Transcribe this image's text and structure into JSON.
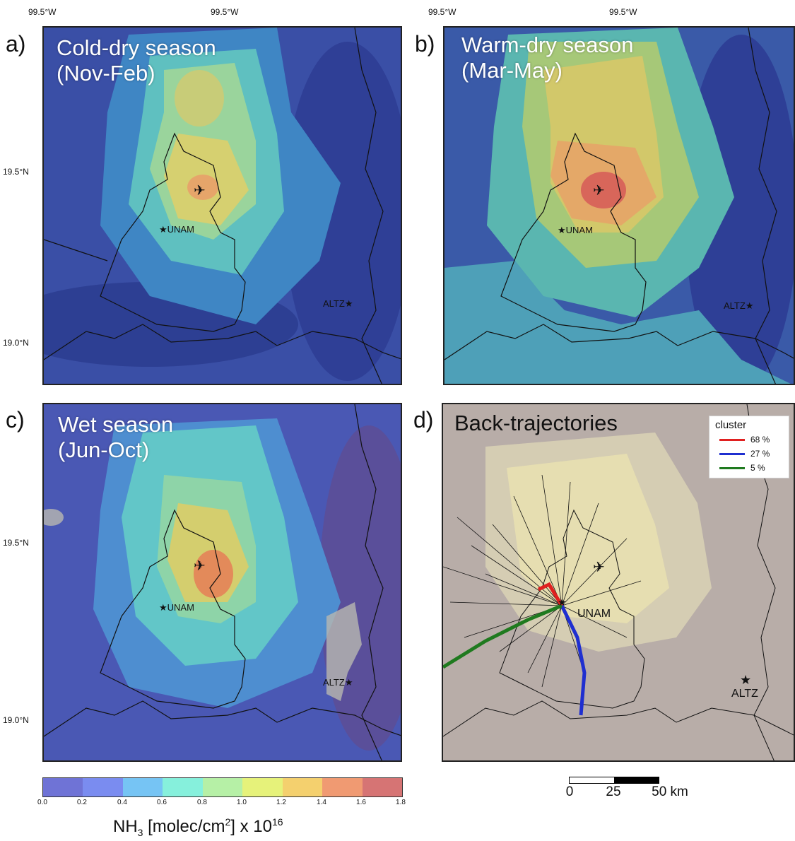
{
  "axes": {
    "lon_labels": [
      "99.5°W",
      "99.5°W",
      "99.5°W",
      "99.5°W"
    ],
    "lat_labels": [
      "19.5°N",
      "19.0°N",
      "19.5°N",
      "19.0°N"
    ]
  },
  "panels": [
    {
      "letter": "a)",
      "title1": "Cold-dry season",
      "title2": "(Nov-Feb)",
      "levels": [
        0.3,
        0.7,
        1.1,
        1.3
      ]
    },
    {
      "letter": "b)",
      "title1": "Warm-dry season",
      "title2": "(Mar-May)",
      "levels": [
        0.4,
        0.9,
        1.3,
        1.5
      ]
    },
    {
      "letter": "c)",
      "title1": "Wet season",
      "title2": "(Jun-Oct)",
      "levels": [
        0.4,
        0.8,
        1.1,
        1.4
      ]
    },
    {
      "letter": "d)",
      "title1": "Back-trajectories",
      "title2": ""
    }
  ],
  "sites": {
    "unam": "UNAM",
    "altz": "ALTZ",
    "airport_icon": "airplane-icon",
    "site_icon": "star-icon"
  },
  "legend": {
    "title": "cluster",
    "entries": [
      {
        "label": "68 %",
        "color": "#e02020"
      },
      {
        "label": "27 %",
        "color": "#1f2fd0"
      },
      {
        "label": "5 %",
        "color": "#1f7a1f"
      }
    ]
  },
  "colorbar": {
    "ticks": [
      "0.0",
      "0.2",
      "0.4",
      "0.6",
      "0.8",
      "1.0",
      "1.2",
      "1.4",
      "1.6",
      "1.8"
    ],
    "colors": [
      "#6f73d6",
      "#7a8cf0",
      "#76c4f4",
      "#86f0dc",
      "#b6f0a6",
      "#e6f27a",
      "#f4d06e",
      "#f09a72",
      "#d67474"
    ],
    "label_main": "NH",
    "label_sub": "3",
    "label_rest": " [molec/cm",
    "label_sup": "2",
    "label_tail": "] x 10",
    "label_exp": "16"
  },
  "scalebar": {
    "ticks": [
      "0",
      "25",
      "50 km"
    ]
  }
}
